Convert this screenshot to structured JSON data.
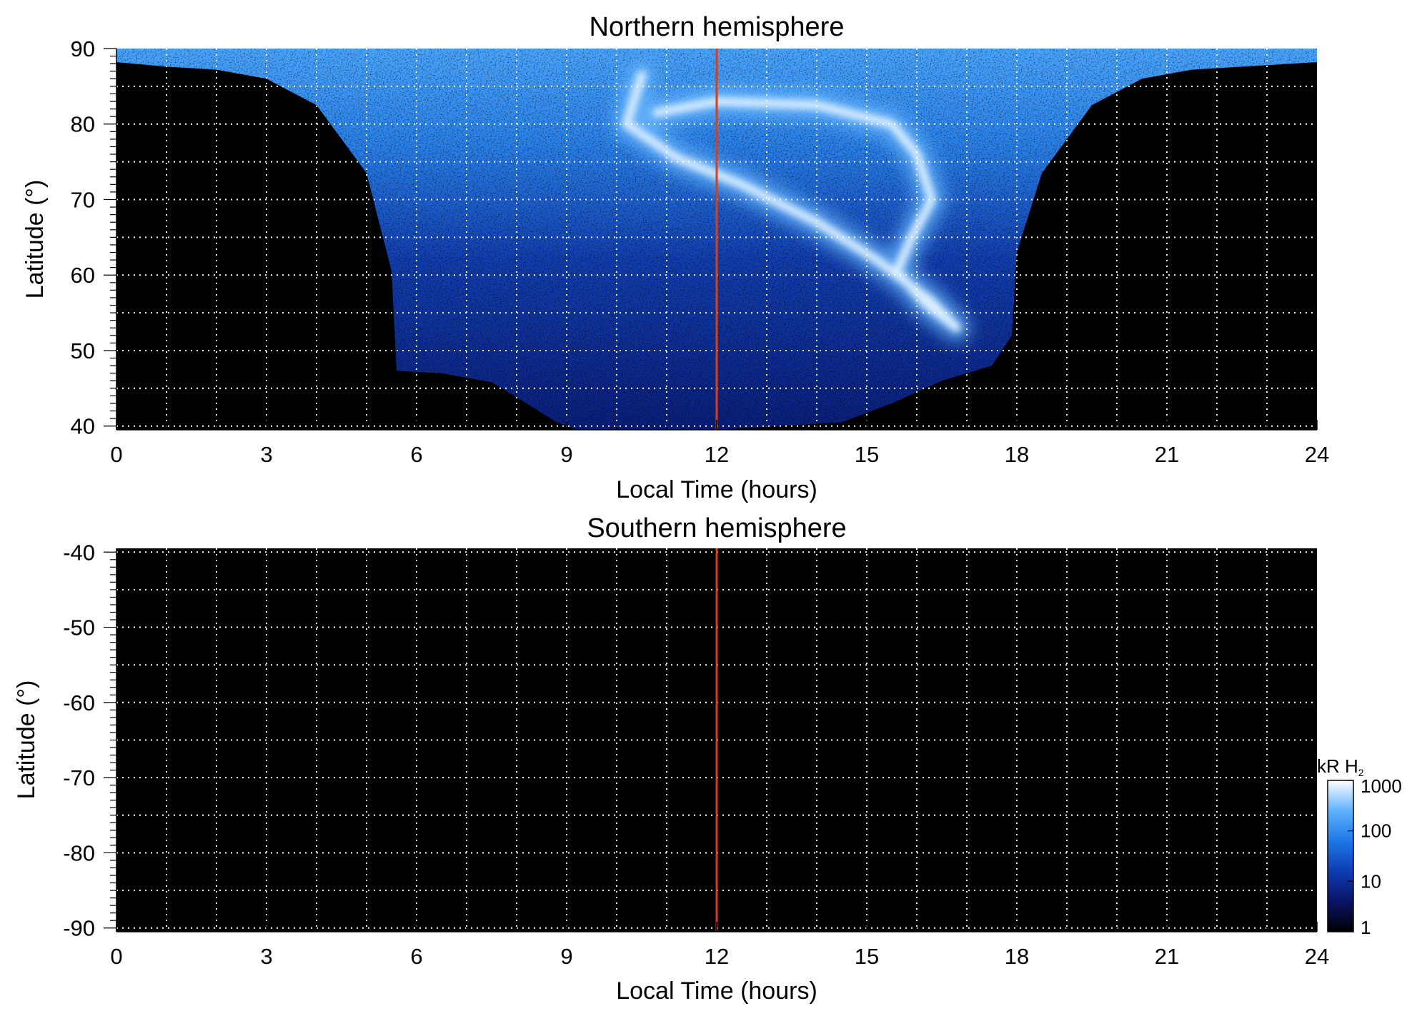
{
  "chart_data": [
    {
      "type": "heatmap",
      "title": "Northern hemisphere",
      "xlabel": "Local Time (hours)",
      "ylabel": "Latitude (°)",
      "xlim": [
        0,
        24
      ],
      "ylim": [
        39.5,
        90
      ],
      "x_ticks": [
        "0",
        "3",
        "6",
        "9",
        "12",
        "15",
        "18",
        "21",
        "24"
      ],
      "y_ticks": [
        "40",
        "50",
        "60",
        "70",
        "80",
        "90"
      ],
      "x_tick_values": [
        0,
        3,
        6,
        9,
        12,
        15,
        18,
        21,
        24
      ],
      "y_tick_values": [
        40,
        50,
        60,
        70,
        80,
        90
      ],
      "grid": true,
      "vertical_marker": {
        "x": 12,
        "color": "#d2401c"
      },
      "coverage_boundary": [
        [
          0,
          88.2
        ],
        [
          1,
          87.6
        ],
        [
          2,
          87.2
        ],
        [
          3,
          86.0
        ],
        [
          4,
          82.5
        ],
        [
          5,
          73.5
        ],
        [
          5.5,
          60.5
        ],
        [
          5.6,
          47.3
        ],
        [
          6.5,
          47.0
        ],
        [
          7.5,
          45.8
        ],
        [
          8.2,
          43.0
        ],
        [
          8.8,
          40.5
        ],
        [
          9.2,
          39.5
        ],
        [
          12,
          39.5
        ],
        [
          14.5,
          40.5
        ],
        [
          15.5,
          43.0
        ],
        [
          16.5,
          46.0
        ],
        [
          17.5,
          48.0
        ],
        [
          17.9,
          52.0
        ],
        [
          18.0,
          63.0
        ],
        [
          18.5,
          73.5
        ],
        [
          19.5,
          82.5
        ],
        [
          20.5,
          86.0
        ],
        [
          21.5,
          87.2
        ],
        [
          22.5,
          87.6
        ],
        [
          24,
          88.2
        ]
      ],
      "auroral_oval": [
        [
          10.5,
          86.5
        ],
        [
          10.2,
          80.0
        ],
        [
          11.2,
          75.5
        ],
        [
          12.5,
          72.0
        ],
        [
          14.0,
          67.0
        ],
        [
          15.2,
          62.0
        ],
        [
          16.3,
          56.5
        ],
        [
          16.8,
          53.0
        ],
        [
          16.2,
          56.0
        ],
        [
          15.6,
          60.5
        ],
        [
          15.9,
          65.0
        ],
        [
          16.3,
          70.0
        ],
        [
          16.0,
          76.0
        ],
        [
          15.5,
          80.0
        ],
        [
          14.0,
          82.5
        ],
        [
          12.0,
          83.0
        ],
        [
          10.8,
          81.5
        ]
      ],
      "colors": {
        "background": "#000000",
        "low": "#0a1a6e",
        "mid": "#1f78e6",
        "high": "#d8ecff"
      }
    },
    {
      "type": "heatmap",
      "title": "Southern hemisphere",
      "xlabel": "Local Time (hours)",
      "ylabel": "Latitude (°)",
      "xlim": [
        0,
        24
      ],
      "ylim": [
        -90.5,
        -39.5
      ],
      "x_ticks": [
        "0",
        "3",
        "6",
        "9",
        "12",
        "15",
        "18",
        "21",
        "24"
      ],
      "y_ticks": [
        "-40",
        "-50",
        "-60",
        "-70",
        "-80",
        "-90"
      ],
      "x_tick_values": [
        0,
        3,
        6,
        9,
        12,
        15,
        18,
        21,
        24
      ],
      "y_tick_values": [
        -40,
        -50,
        -60,
        -70,
        -80,
        -90
      ],
      "grid": true,
      "vertical_marker": {
        "x": 12,
        "color": "#d2401c"
      },
      "colors": {
        "background": "#000000"
      }
    }
  ],
  "colorbar": {
    "label_main": "kR H",
    "label_sub": "2",
    "scale": "log",
    "range": [
      1,
      1000
    ],
    "ticks": [
      "1000",
      "100",
      "10",
      "1"
    ],
    "tick_values": [
      1000,
      100,
      10,
      1
    ],
    "stops": [
      "#000000",
      "#0a1466",
      "#0f3cb4",
      "#1f78e6",
      "#5fb2ff",
      "#ffffff"
    ]
  }
}
